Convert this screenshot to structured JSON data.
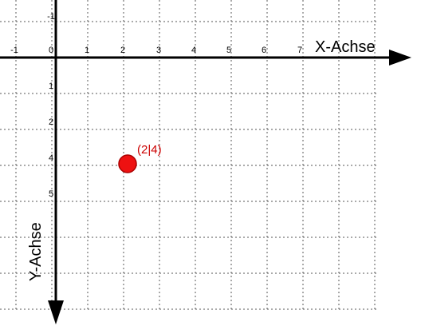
{
  "x_axis": {
    "label": "X-Achse",
    "tick_labels": [
      "-1",
      "0",
      "1",
      "2",
      "3",
      "4",
      "5",
      "6",
      "7"
    ]
  },
  "y_axis": {
    "label": "Y-Achse",
    "tick_labels": [
      "-1",
      "1",
      "2",
      "4",
      "5"
    ]
  },
  "point": {
    "label": "(2|4)"
  }
}
